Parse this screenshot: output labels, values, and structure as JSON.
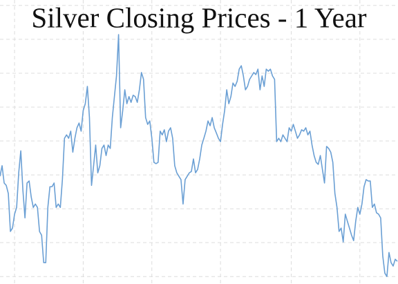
{
  "chart_data": {
    "type": "line",
    "title": "Silver Closing Prices - 1 Year",
    "color": "#6a9fd4",
    "grid": true,
    "ylim": [
      -0.22,
      8.16
    ],
    "yticks": [
      0,
      1,
      2,
      3,
      4,
      5,
      6,
      7,
      8
    ],
    "xlim": [
      0,
      191
    ],
    "xticks": [
      7,
      40,
      73,
      106,
      140,
      173
    ],
    "values": [
      2.96,
      3.27,
      2.76,
      2.69,
      2.45,
      1.33,
      1.43,
      1.84,
      2.04,
      3.06,
      3.71,
      2.55,
      1.73,
      2.76,
      2.82,
      2.35,
      2.04,
      2.14,
      2.04,
      1.33,
      1.22,
      0.41,
      0.41,
      2.04,
      2.65,
      2.65,
      2.76,
      2.04,
      2.14,
      2.04,
      2.86,
      4.08,
      4.18,
      4.08,
      4.29,
      3.67,
      4.08,
      4.39,
      4.53,
      4.29,
      4.9,
      5.1,
      5.61,
      4.69,
      2.69,
      3.27,
      3.88,
      3.06,
      3.27,
      3.78,
      3.88,
      3.57,
      3.88,
      3.78,
      4.69,
      5.31,
      5.92,
      7.14,
      4.39,
      4.9,
      5.51,
      5.1,
      5.31,
      5.14,
      5.35,
      5.31,
      5.14,
      5.51,
      6.02,
      5.82,
      4.69,
      4.49,
      4.59,
      4.08,
      3.37,
      3.33,
      3.37,
      4.29,
      4.18,
      4.33,
      3.98,
      4.29,
      4.39,
      4.08,
      3.27,
      3.06,
      2.96,
      2.86,
      2.14,
      2.86,
      2.96,
      3.06,
      3.1,
      3.47,
      3.06,
      3.16,
      3.47,
      3.88,
      4.08,
      4.29,
      4.59,
      4.45,
      4.69,
      4.39,
      4.24,
      4.08,
      3.98,
      4.49,
      4.9,
      5.51,
      5.1,
      5.31,
      5.71,
      5.61,
      5.76,
      6.12,
      6.22,
      5.92,
      5.51,
      5.61,
      5.82,
      5.92,
      6.02,
      5.96,
      6.12,
      5.51,
      5.92,
      5.61,
      6.12,
      6.06,
      6.12,
      5.92,
      5.82,
      3.98,
      4.08,
      3.98,
      4.18,
      4.08,
      3.98,
      4.39,
      4.29,
      4.49,
      4.29,
      4.08,
      4.18,
      4.33,
      4.29,
      4.39,
      4.18,
      4.29,
      3.88,
      3.57,
      3.37,
      3.31,
      3.57,
      3.16,
      2.76,
      3.84,
      3.78,
      3.67,
      3.37,
      2.45,
      2.04,
      1.33,
      1.43,
      1.02,
      1.84,
      1.63,
      1.43,
      1.22,
      1.06,
      1.63,
      2.04,
      1.84,
      2.14,
      2.65,
      2.86,
      2.82,
      2.82,
      2.04,
      2.14,
      1.88,
      1.84,
      1.73,
      0.61,
      0.1,
      0.0,
      0.71,
      0.41,
      0.31,
      0.51,
      0.45
    ]
  }
}
